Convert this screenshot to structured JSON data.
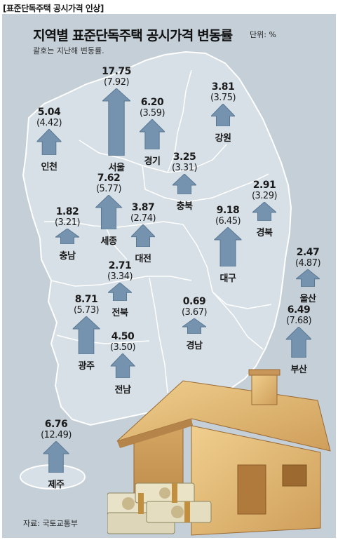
{
  "header_tag": "[표준단독주택 공시가격 인상]",
  "source": "자료: 국토교통부",
  "colors": {
    "panel": "#c4cfd8",
    "land": "#d7e0e7",
    "border": "#ffffff",
    "arrow": "#7593ae",
    "arrow_dark": "#5a7893"
  },
  "chart_data": {
    "type": "map",
    "title": "지역별 표준단독주택 공시가격 변동률",
    "unit": "단위: %",
    "subtitle": "괄호는 지난해 변동률.",
    "regions": [
      {
        "name": "서울",
        "value": "17.75",
        "previous": "(7.92)"
      },
      {
        "name": "경기",
        "value": "6.20",
        "previous": "(3.59)"
      },
      {
        "name": "인천",
        "value": "5.04",
        "previous": "(4.42)"
      },
      {
        "name": "강원",
        "value": "3.81",
        "previous": "(3.75)"
      },
      {
        "name": "세종",
        "value": "7.62",
        "previous": "(5.77)"
      },
      {
        "name": "충북",
        "value": "3.25",
        "previous": "(3.31)"
      },
      {
        "name": "충남",
        "value": "1.82",
        "previous": "(3.21)"
      },
      {
        "name": "대전",
        "value": "3.87",
        "previous": "(2.74)"
      },
      {
        "name": "경북",
        "value": "2.91",
        "previous": "(3.29)"
      },
      {
        "name": "대구",
        "value": "9.18",
        "previous": "(6.45)"
      },
      {
        "name": "전북",
        "value": "2.71",
        "previous": "(3.34)"
      },
      {
        "name": "울산",
        "value": "2.47",
        "previous": "(4.87)"
      },
      {
        "name": "경남",
        "value": "0.69",
        "previous": "(3.67)"
      },
      {
        "name": "광주",
        "value": "8.71",
        "previous": "(5.73)"
      },
      {
        "name": "부산",
        "value": "6.49",
        "previous": "(7.68)"
      },
      {
        "name": "전남",
        "value": "4.50",
        "previous": "(3.50)"
      },
      {
        "name": "제주",
        "value": "6.76",
        "previous": "(12.49)"
      }
    ]
  }
}
